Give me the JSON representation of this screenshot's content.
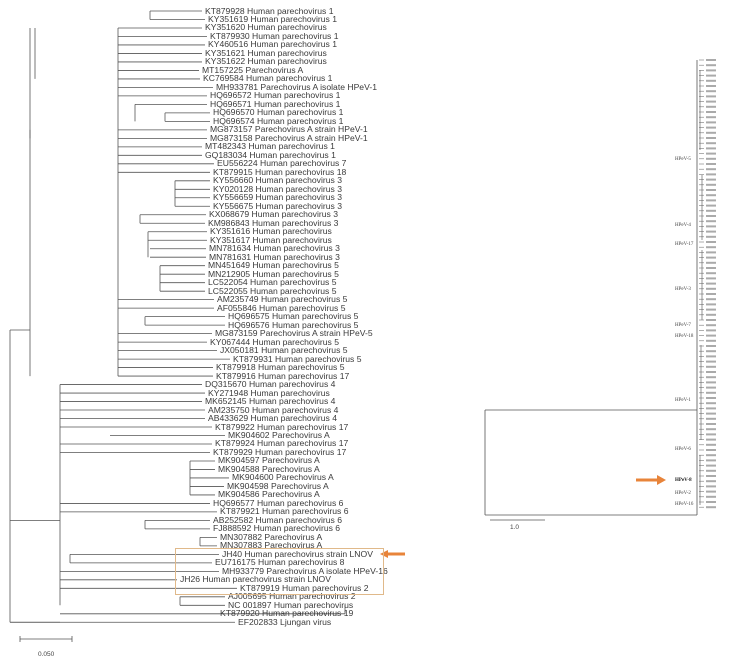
{
  "main_tree": {
    "leaves": [
      "KT879928 Human parechovirus 1",
      "KY351619 Human parechovirus 1",
      "KY351620 Human parechovirus",
      "KT879930 Human parechovirus 1",
      "KY460516 Human parechovirus 1",
      "KY351621 Human parechovirus",
      "KY351622 Human parechovirus",
      "MT157225 Parechovirus A",
      "KC769584 Human parechovirus 1",
      "MH933781 Parechovirus A isolate HPeV-1",
      "HQ696572 Human parechovirus 1",
      "HQ696571 Human parechovirus 1",
      "HQ696570 Human parechovirus 1",
      "HQ696574 Human parechovirus 1",
      "MG873157 Parechovirus A strain HPeV-1",
      "MG873158 Parechovirus A strain HPeV-1",
      "MT482343 Human parechovirus 1",
      "GQ183034 Human parechovirus 1",
      "EU556224 Human parechovirus 7",
      "KT879915 Human parechovirus 18",
      "KY556660 Human parechovirus 3",
      "KY020128 Human parechovirus 3",
      "KY556659 Human parechovirus 3",
      "KY556675 Human parechovirus 3",
      "KX068679 Human parechovirus 3",
      "KM986843 Human parechovirus 3",
      "KY351616 Human parechovirus",
      "KY351617 Human parechovirus",
      "MN781634 Human parechovirus 3",
      "MN781631 Human parechovirus 3",
      "MN451649 Human parechovirus 5",
      "MN212905 Human parechovirus 5",
      "LC522054 Human parechovirus 5",
      "LC522055 Human parechovirus 5",
      "AM235749 Human parechovirus 5",
      "AF055846 Human parechovirus 5",
      "HQ696575 Human parechovirus 5",
      "HQ696576 Human parechovirus 5",
      "MG873159 Parechovirus A strain HPeV-5",
      "KY067444 Human parechovirus 5",
      "JX050181 Human parechovirus 5",
      "KT879931 Human parechovirus 5",
      "KT879918 Human parechovirus 5",
      "KT879916 Human parechovirus 17",
      "DQ315670 Human parechovirus 4",
      "KY271948 Human parechovirus",
      "MK652145 Human parechovirus 4",
      "AM235750 Human parechovirus 4",
      "AB433629 Human parechovirus 4",
      "KT879922 Human parechovirus 17",
      "MK904602 Parechovirus A",
      "KT879924 Human parechovirus 17",
      "KT879929 Human parechovirus 17",
      "MK904597 Parechovirus A",
      "MK904588 Parechovirus A",
      "MK904600 Parechovirus A",
      "MK904598 Parechovirus A",
      "MK904586 Parechovirus A",
      "HQ696577 Human parechovirus 6",
      "KT879921 Human parechovirus 6",
      "AB252582 Human parechovirus 6",
      "FJ888592 Human parechovirus 6",
      "MN307882 Parechovirus A",
      "MN307883 Parechovirus A",
      "JH40 Human parechovirus strain LNOV",
      "EU716175 Human parechovirus 8",
      "MH933779 Parechovirus A isolate HPeV-16",
      "JH26 Human parechovirus strain LNOV",
      "KT879919 Human parechovirus 2",
      "AJ005695 Human parechovirus 2",
      "NC 001897 Human parechovirus",
      "KT879920 Human parechovirus 19",
      "EF202833 Ljungan virus"
    ],
    "highlighted_leaves": [
      "JH40 Human parechovirus strain LNOV",
      "JH26 Human parechovirus strain LNOV"
    ],
    "scale_bar": "0.050"
  },
  "inset_tree": {
    "clades": [
      {
        "label": "HPeV-5",
        "bold": false
      },
      {
        "label": "HPeV-4",
        "bold": false
      },
      {
        "label": "HPeV-17",
        "bold": false
      },
      {
        "label": "HPeV-3",
        "bold": false
      },
      {
        "label": "HPeV-7",
        "bold": false
      },
      {
        "label": "HPeV-18",
        "bold": false
      },
      {
        "label": "HPeV-1",
        "bold": false
      },
      {
        "label": "HPeV-6",
        "bold": false
      },
      {
        "label": "HPeV-8",
        "bold": true
      },
      {
        "label": "HPeV-2",
        "bold": false
      },
      {
        "label": "HPeV-16",
        "bold": false
      }
    ],
    "scale_bar": "1.0"
  },
  "colors": {
    "arrow": "#e8843a",
    "highlight_box": "#e0b98a",
    "branch": "#555555"
  }
}
